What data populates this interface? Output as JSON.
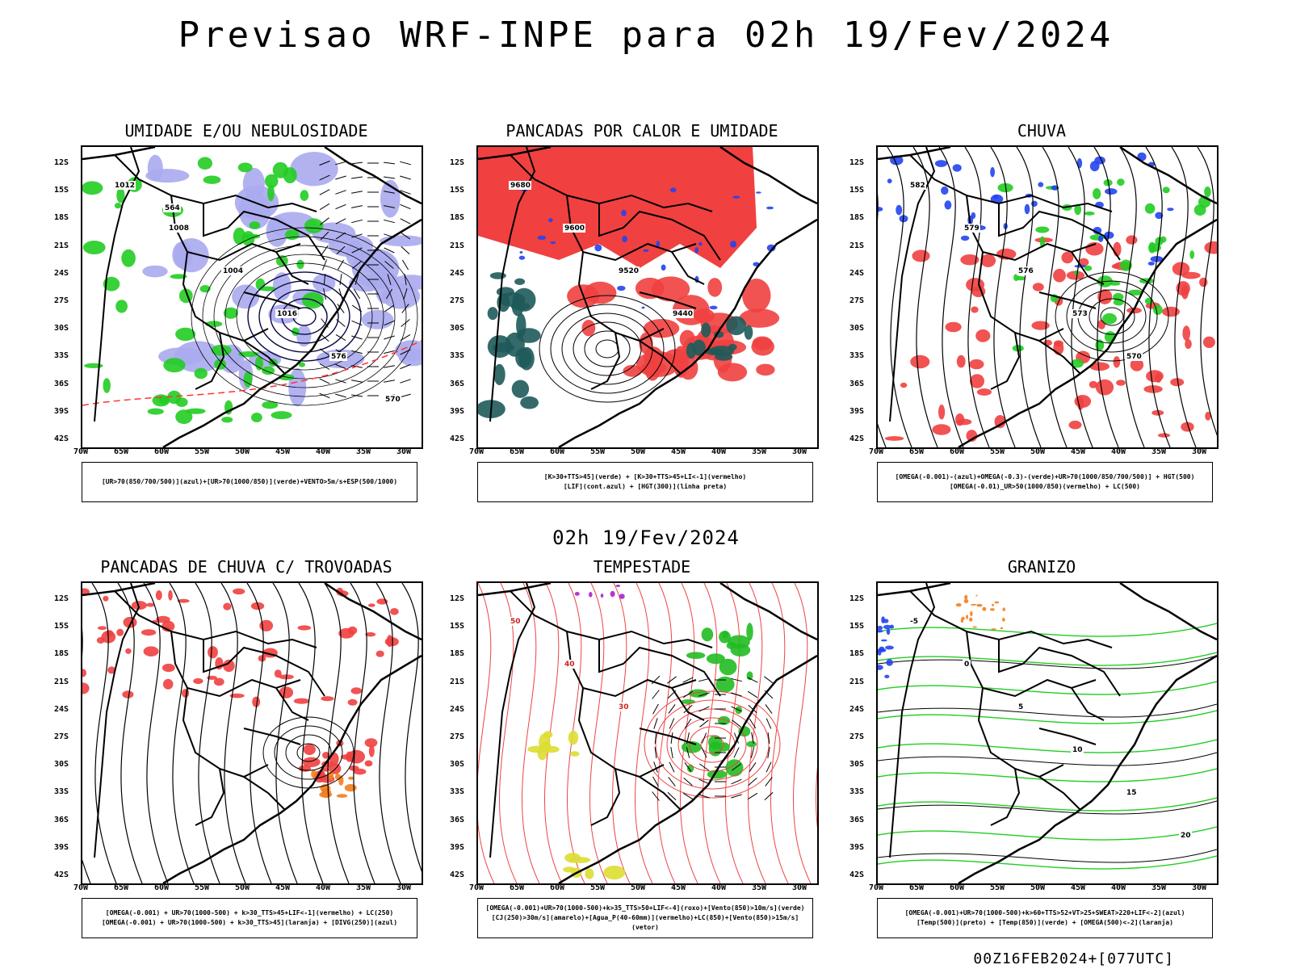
{
  "title": "Previsao WRF-INPE  para 02h 19/Fev/2024",
  "mid_title": "02h 19/Fev/2024",
  "footer": "00Z16FEB2024+[077UTC]",
  "lat_labels": [
    "12S",
    "15S",
    "18S",
    "21S",
    "24S",
    "27S",
    "30S",
    "33S",
    "36S",
    "39S",
    "42S"
  ],
  "lon_labels": [
    "70W",
    "65W",
    "60W",
    "55W",
    "50W",
    "45W",
    "40W",
    "35W",
    "30W"
  ],
  "panels": [
    {
      "title": "UMIDADE E/OU NEBULOSIDADE",
      "legend": [
        "[UR>70(850/700/500)](azul)+[UR>70(1000/850)](verde)+VENTO>5m/s+ESP(500/1000)"
      ],
      "contour_labels": [
        "1012",
        "1008",
        "1004",
        "1016",
        "576",
        "570",
        "564"
      ],
      "colors": {
        "fill": "#aaaaee",
        "line1": "#22cc22",
        "line2": "#ff3333",
        "contour": "#000000"
      }
    },
    {
      "title": "PANCADAS POR CALOR E UMIDADE",
      "legend": [
        "[K>30+TTS>45](verde) + [K>30+TTS>45+LI<-1](vermelho)",
        "[LIF](cont.azul) + [HGT(300)](linha preta)"
      ],
      "contour_labels": [
        "9680",
        "9600",
        "9520",
        "9440"
      ],
      "colors": {
        "fill": "#f04040",
        "fill2": "#1f5a5a",
        "line1": "#2244ee",
        "contour": "#000000"
      }
    },
    {
      "title": "CHUVA",
      "legend": [
        "[OMEGA(-0.001)-(azul)+OMEGA(-0.3)-(verde)+UR>70(1000/850/700/500)] + HGT(500)",
        "[OMEGA(-0.01)_UR>50(1000/850)(vermelho) + LC(500)"
      ],
      "contour_labels": [
        "582",
        "579",
        "576",
        "573",
        "570"
      ],
      "colors": {
        "fill": "#f04040",
        "fill2": "#22cc22",
        "fill3": "#2244ee",
        "contour": "#000000"
      }
    },
    {
      "title": "PANCADAS DE CHUVA C/ TROVOADAS",
      "legend": [
        "[OMEGA(-0.001) + UR>70(1000-500) + k>30_TTS>45+LIF<-1](vermelho) + LC(250)",
        "[OMEGA(-0.001) + UR>70(1000-500) + k>30_TTS>45](laranja) + [DIVG(250)](azul)"
      ],
      "contour_labels": [],
      "colors": {
        "fill": "#f04040",
        "fill2": "#f08020",
        "fill3": "#2244ee",
        "contour": "#000000"
      }
    },
    {
      "title": "TEMPESTADE",
      "legend": [
        "[OMEGA(-0.001)+UR>70(1000-500)+k>35_TTS>50+LIF<-4](roxo)+[Vento(850)>10m/s](verde)",
        "[CJ(250)>30m/s](amarelo)+[Agua_P(40-60mm)](vermelho)+LC(850)+[Vento(850)>15m/s](vetor)"
      ],
      "contour_labels": [
        "50",
        "40",
        "30"
      ],
      "colors": {
        "fill": "#22bb22",
        "fill2": "#dddd33",
        "fill3": "#aa22cc",
        "line1": "#ee4444",
        "contour": "#000000"
      }
    },
    {
      "title": "GRANIZO",
      "legend": [
        "[OMEGA(-0.001)+UR>70(1000-500)+k>60+TTS>52+VT>25+SWEAT>220+LIF<-2](azul)",
        "[Temp(500)](preto) + [Temp(850)](verde) + [OMEGA(500)<-2](laranja)"
      ],
      "contour_labels": [
        "-5",
        "0",
        "5",
        "10",
        "15",
        "20"
      ],
      "colors": {
        "fill": "#f08020",
        "fill2": "#2244ee",
        "line1": "#22cc22",
        "contour": "#000000"
      }
    }
  ]
}
